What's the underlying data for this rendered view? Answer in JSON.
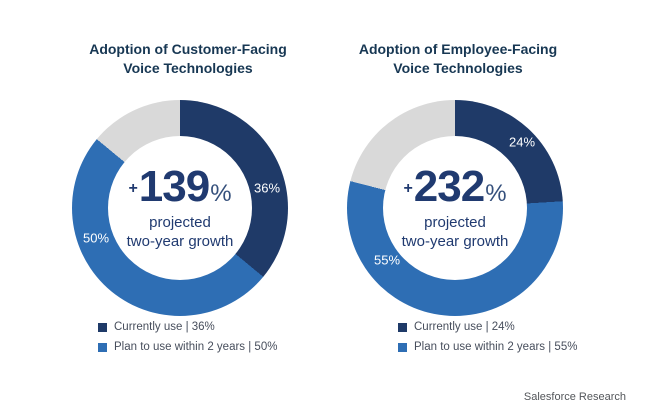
{
  "footer": "Salesforce Research",
  "chart_data": [
    {
      "type": "pie",
      "subtype": "donut",
      "title": "Adoption of Customer-Facing Voice Technologies",
      "title_line1": "Adoption of Customer-Facing",
      "title_line2": "Voice Technologies",
      "center": {
        "prefix": "+",
        "value": "139",
        "suffix": "%",
        "caption_line1": "projected",
        "caption_line2": "two-year growth"
      },
      "segments": [
        {
          "name": "Currently use",
          "value": 36,
          "label": "36%",
          "color": "#1f3a68"
        },
        {
          "name": "Plan to use within 2 years",
          "value": 50,
          "label": "50%",
          "color": "#2e6eb4"
        },
        {
          "name": "remainder",
          "value": 14,
          "label": "",
          "color": "#d9d9d9"
        }
      ],
      "legend": [
        {
          "label": "Currently use | 36%",
          "color": "#1f3a68"
        },
        {
          "label": "Plan to use within 2 years | 50%",
          "color": "#2e6eb4"
        }
      ],
      "legend_position": "bottom-left",
      "start_angle_deg": 0,
      "direction": "clockwise"
    },
    {
      "type": "pie",
      "subtype": "donut",
      "title": "Adoption of Employee-Facing Voice Technologies",
      "title_line1": "Adoption of Employee-Facing",
      "title_line2": "Voice Technologies",
      "center": {
        "prefix": "+",
        "value": "232",
        "suffix": "%",
        "caption_line1": "projected",
        "caption_line2": "two-year growth"
      },
      "segments": [
        {
          "name": "Currently use",
          "value": 24,
          "label": "24%",
          "color": "#1f3a68"
        },
        {
          "name": "Plan to use within 2 years",
          "value": 55,
          "label": "55%",
          "color": "#2e6eb4"
        },
        {
          "name": "remainder",
          "value": 21,
          "label": "",
          "color": "#d9d9d9"
        }
      ],
      "legend": [
        {
          "label": "Currently use | 24%",
          "color": "#1f3a68"
        },
        {
          "label": "Plan to use within 2 years | 55%",
          "color": "#2e6eb4"
        }
      ],
      "legend_position": "bottom-left",
      "start_angle_deg": 0,
      "direction": "clockwise"
    }
  ]
}
